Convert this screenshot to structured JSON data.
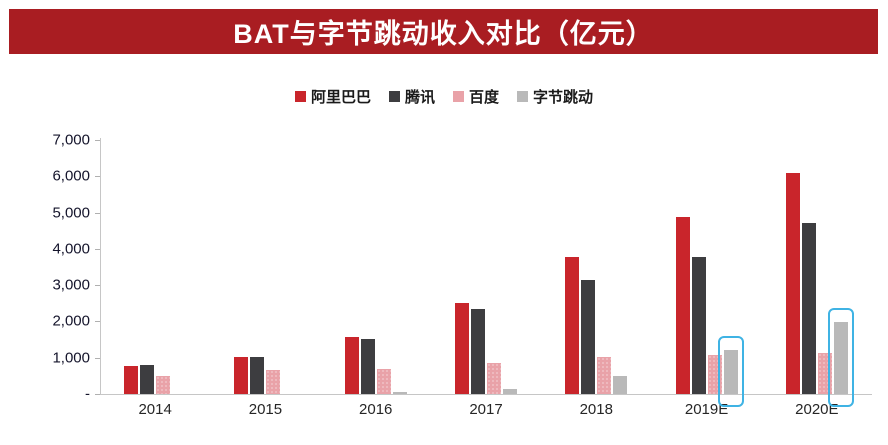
{
  "banner": {
    "title": "BAT与字节跳动收入对比（亿元）",
    "bg_color": "#a91d22"
  },
  "chart_data": {
    "type": "bar",
    "title": "BAT与字节跳动收入对比（亿元）",
    "categories": [
      "2014",
      "2015",
      "2016",
      "2017",
      "2018",
      "2019E",
      "2020E"
    ],
    "series": [
      {
        "name": "阿里巴巴",
        "color": "#c9252b",
        "pattern": "solid",
        "values": [
          760,
          1010,
          1580,
          2500,
          3770,
          4890,
          6080
        ]
      },
      {
        "name": "腾讯",
        "color": "#3d3d40",
        "pattern": "solid",
        "values": [
          790,
          1030,
          1520,
          2330,
          3130,
          3770,
          4700
        ]
      },
      {
        "name": "百度",
        "color": "#e9a2a8",
        "pattern": "dotted",
        "values": [
          490,
          660,
          700,
          850,
          1020,
          1070,
          1140
        ]
      },
      {
        "name": "字节跳动",
        "color": "#b9b9b9",
        "pattern": "solid",
        "values": [
          0,
          0,
          60,
          150,
          500,
          1200,
          1980
        ]
      }
    ],
    "ylim": [
      0,
      7000
    ],
    "yticks": [
      7000,
      6000,
      5000,
      4000,
      3000,
      2000,
      1000,
      0
    ],
    "ytick_labels": [
      "7,000",
      "6,000",
      "5,000",
      "4,000",
      "3,000",
      "2,000",
      "1,000",
      "-"
    ],
    "grid": false,
    "legend_position": "top-center",
    "highlights": {
      "series": "字节跳动",
      "categories": [
        "2019E",
        "2020E"
      ],
      "color": "#3fb3e4"
    }
  }
}
